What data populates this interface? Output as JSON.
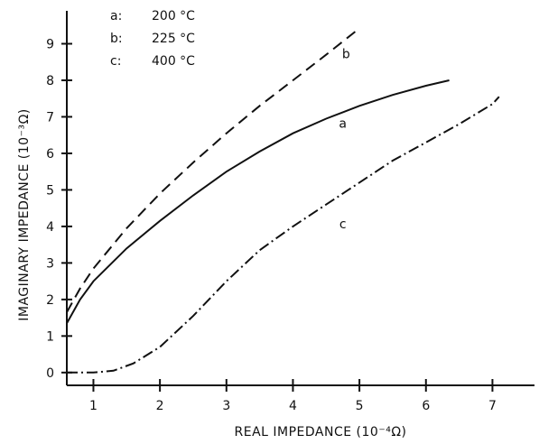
{
  "chart_data": {
    "type": "line",
    "xlabel": "REAL IMPEDANCE (10⁻⁴Ω)",
    "ylabel": "IMAGINARY IMPEDANCE (10⁻³Ω)",
    "xlim": [
      0.6,
      7.7
    ],
    "ylim": [
      -0.35,
      10
    ],
    "x_ticks": [
      "1",
      "2",
      "3",
      "4",
      "5",
      "6",
      "7"
    ],
    "y_ticks": [
      "0",
      "1",
      "2",
      "3",
      "4",
      "5",
      "6",
      "7",
      "8",
      "9"
    ],
    "grid": false,
    "legend": [
      {
        "key": "a:",
        "label": "200 °C"
      },
      {
        "key": "b:",
        "label": "225 °C"
      },
      {
        "key": "c:",
        "label": "400 °C"
      }
    ],
    "series": [
      {
        "name": "a",
        "dash": "solid",
        "label_at": [
          4.75,
          6.7
        ],
        "points": [
          [
            0.6,
            1.35
          ],
          [
            0.8,
            2.0
          ],
          [
            1.0,
            2.5
          ],
          [
            1.5,
            3.4
          ],
          [
            2.0,
            4.15
          ],
          [
            2.5,
            4.85
          ],
          [
            3.0,
            5.5
          ],
          [
            3.5,
            6.05
          ],
          [
            4.0,
            6.55
          ],
          [
            4.5,
            6.95
          ],
          [
            5.0,
            7.3
          ],
          [
            5.5,
            7.6
          ],
          [
            6.0,
            7.85
          ],
          [
            6.35,
            8.0
          ]
        ]
      },
      {
        "name": "b",
        "dash": "12 7",
        "label_at": [
          4.8,
          8.6
        ],
        "points": [
          [
            0.6,
            1.65
          ],
          [
            0.8,
            2.3
          ],
          [
            1.0,
            2.85
          ],
          [
            1.5,
            3.95
          ],
          [
            2.0,
            4.9
          ],
          [
            2.5,
            5.75
          ],
          [
            3.0,
            6.55
          ],
          [
            3.5,
            7.3
          ],
          [
            4.0,
            8.0
          ],
          [
            4.5,
            8.7
          ],
          [
            4.95,
            9.35
          ]
        ]
      },
      {
        "name": "c",
        "dash": "12 4 2 4",
        "label_at": [
          4.75,
          3.95
        ],
        "points": [
          [
            0.6,
            0.0
          ],
          [
            1.0,
            0.0
          ],
          [
            1.3,
            0.05
          ],
          [
            1.6,
            0.25
          ],
          [
            2.0,
            0.7
          ],
          [
            2.5,
            1.55
          ],
          [
            3.0,
            2.5
          ],
          [
            3.5,
            3.35
          ],
          [
            4.0,
            4.0
          ],
          [
            4.5,
            4.6
          ],
          [
            5.0,
            5.2
          ],
          [
            5.5,
            5.8
          ],
          [
            6.0,
            6.3
          ],
          [
            6.5,
            6.8
          ],
          [
            7.0,
            7.35
          ],
          [
            7.1,
            7.55
          ]
        ]
      }
    ]
  }
}
